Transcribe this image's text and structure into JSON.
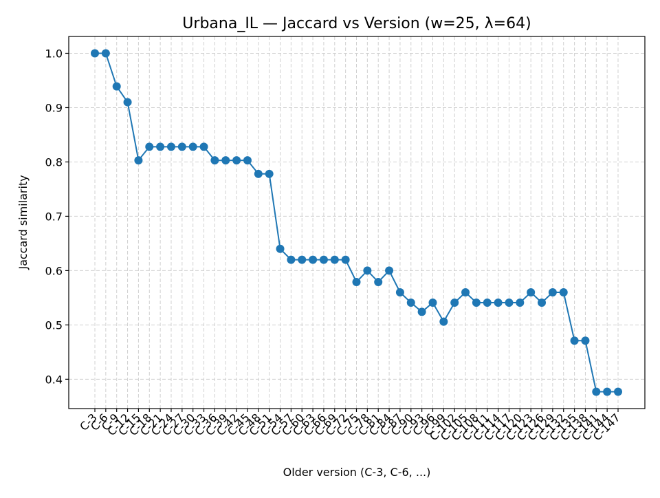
{
  "chart_data": {
    "type": "line",
    "title": "Urbana_IL — Jaccard vs Version (w=25, λ=64)",
    "xlabel": "Older version (C-3, C-6, ...)",
    "ylabel": "Jaccard similarity",
    "categories": [
      "C-3",
      "C-6",
      "C-9",
      "C-12",
      "C-15",
      "C-18",
      "C-21",
      "C-24",
      "C-27",
      "C-30",
      "C-33",
      "C-36",
      "C-39",
      "C-42",
      "C-45",
      "C-48",
      "C-51",
      "C-54",
      "C-57",
      "C-60",
      "C-63",
      "C-66",
      "C-69",
      "C-72",
      "C-75",
      "C-78",
      "C-81",
      "C-84",
      "C-87",
      "C-90",
      "C-93",
      "C-96",
      "C-99",
      "C-102",
      "C-105",
      "C-108",
      "C-111",
      "C-114",
      "C-117",
      "C-120",
      "C-123",
      "C-126",
      "C-129",
      "C-132",
      "C-135",
      "C-138",
      "C-141",
      "C-144",
      "C-147"
    ],
    "series": [
      {
        "values": [
          1.0,
          1.0,
          0.939,
          0.91,
          0.803,
          0.828,
          0.828,
          0.828,
          0.828,
          0.828,
          0.828,
          0.803,
          0.803,
          0.803,
          0.803,
          0.778,
          0.778,
          0.64,
          0.62,
          0.62,
          0.62,
          0.62,
          0.62,
          0.62,
          0.579,
          0.6,
          0.579,
          0.6,
          0.56,
          0.541,
          0.524,
          0.541,
          0.506,
          0.541,
          0.56,
          0.541,
          0.541,
          0.541,
          0.541,
          0.541,
          0.56,
          0.541,
          0.56,
          0.56,
          0.471,
          0.471,
          0.377,
          0.377,
          0.377
        ],
        "color": "#1f77b4"
      }
    ],
    "yticks": [
      "0.4",
      "0.5",
      "0.6",
      "0.7",
      "0.8",
      "0.9",
      "1.0"
    ],
    "ylim": [
      0.346,
      1.031
    ],
    "grid": true,
    "legend": "none"
  }
}
